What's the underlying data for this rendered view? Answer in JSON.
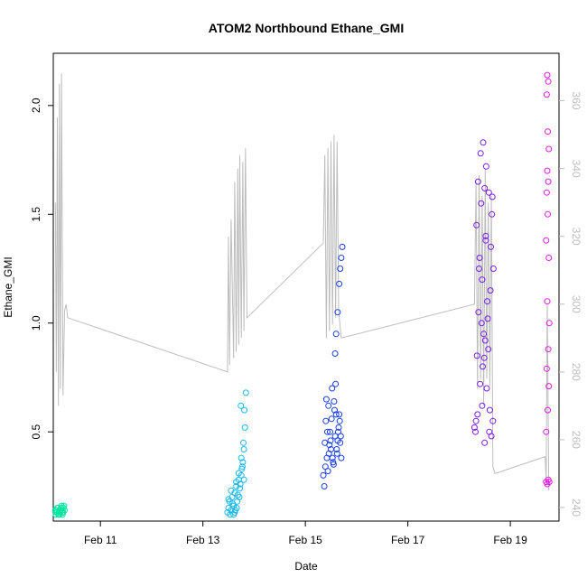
{
  "chart_data": {
    "type": "scatter",
    "title": "ATOM2 Northbound Ethane_GMI",
    "xlabel": "Date",
    "ylabel": "Ethane_GMI",
    "xlim": [
      10.08,
      19.95
    ],
    "ylim": [
      0.09,
      2.24
    ],
    "y_ticks": [
      0.5,
      1.0,
      1.5,
      2.0
    ],
    "y_tick_labels": [
      "0.5",
      "1.0",
      "1.5",
      "2.0"
    ],
    "x_ticks": [
      11,
      13,
      15,
      17,
      19
    ],
    "x_tick_labels": [
      "Feb 11",
      "Feb 13",
      "Feb 15",
      "Feb 17",
      "Feb 19"
    ],
    "right_axis": {
      "ylim": [
        236,
        374
      ],
      "ticks": [
        240,
        260,
        280,
        300,
        320,
        340,
        360
      ],
      "tick_labels": [
        "240",
        "260",
        "280",
        "300",
        "320",
        "340",
        "360"
      ],
      "color": "#bdbdbd"
    },
    "grid": false,
    "series": [
      {
        "color": "#00e5a0",
        "x": [
          10.12,
          10.14,
          10.16,
          10.18,
          10.2,
          10.22,
          10.24,
          10.26,
          10.28,
          10.3,
          10.13,
          10.17,
          10.21,
          10.25,
          10.29,
          10.15,
          10.19,
          10.23,
          10.27,
          10.14,
          10.2,
          10.26
        ],
        "y": [
          0.14,
          0.13,
          0.15,
          0.12,
          0.14,
          0.13,
          0.16,
          0.12,
          0.15,
          0.14,
          0.12,
          0.15,
          0.13,
          0.14,
          0.16,
          0.13,
          0.12,
          0.15,
          0.13,
          0.14,
          0.12,
          0.13
        ]
      },
      {
        "color": "#18b8f0",
        "x": [
          13.48,
          13.5,
          13.52,
          13.55,
          13.57,
          13.6,
          13.62,
          13.65,
          13.67,
          13.7,
          13.72,
          13.75,
          13.77,
          13.8,
          13.53,
          13.58,
          13.63,
          13.68,
          13.73,
          13.78,
          13.5,
          13.55,
          13.6,
          13.65,
          13.7,
          13.75,
          13.8,
          13.62,
          13.66,
          13.71,
          13.76,
          13.79,
          13.82,
          13.81,
          13.84,
          13.74
        ],
        "y": [
          0.13,
          0.15,
          0.18,
          0.14,
          0.2,
          0.16,
          0.22,
          0.25,
          0.18,
          0.28,
          0.24,
          0.3,
          0.34,
          0.28,
          0.12,
          0.17,
          0.14,
          0.21,
          0.26,
          0.36,
          0.19,
          0.23,
          0.12,
          0.27,
          0.31,
          0.38,
          0.42,
          0.13,
          0.15,
          0.2,
          0.33,
          0.45,
          0.52,
          0.6,
          0.68,
          0.62
        ]
      },
      {
        "color": "#1a3fe6",
        "x": [
          15.35,
          15.38,
          15.4,
          15.42,
          15.45,
          15.48,
          15.5,
          15.52,
          15.55,
          15.58,
          15.6,
          15.62,
          15.65,
          15.68,
          15.7,
          15.37,
          15.41,
          15.44,
          15.47,
          15.51,
          15.54,
          15.57,
          15.61,
          15.64,
          15.67,
          15.69,
          15.39,
          15.43,
          15.46,
          15.49,
          15.53,
          15.56,
          15.59,
          15.63,
          15.66,
          15.58,
          15.6,
          15.63,
          15.66,
          15.68,
          15.7,
          15.72
        ],
        "y": [
          0.3,
          0.45,
          0.55,
          0.38,
          0.62,
          0.5,
          0.42,
          0.7,
          0.35,
          0.48,
          0.58,
          0.4,
          0.52,
          0.45,
          0.38,
          0.25,
          0.65,
          0.32,
          0.44,
          0.56,
          0.36,
          0.6,
          0.42,
          0.5,
          0.55,
          0.48,
          0.34,
          0.5,
          0.4,
          0.46,
          0.38,
          0.64,
          0.72,
          0.46,
          0.58,
          0.86,
          0.95,
          1.05,
          1.18,
          1.25,
          1.3,
          1.35
        ]
      },
      {
        "color": "#7a1bf0",
        "x": [
          18.3,
          18.33,
          18.35,
          18.38,
          18.4,
          18.43,
          18.45,
          18.48,
          18.5,
          18.52,
          18.55,
          18.57,
          18.6,
          18.62,
          18.65,
          18.67,
          18.32,
          18.36,
          18.41,
          18.46,
          18.51,
          18.56,
          18.61,
          18.66,
          18.34,
          18.39,
          18.44,
          18.49,
          18.54,
          18.59,
          18.64,
          18.37,
          18.42,
          18.47,
          18.53,
          18.58,
          18.63,
          18.45,
          18.5,
          18.52
        ],
        "y": [
          0.52,
          0.55,
          0.85,
          1.05,
          1.3,
          1.55,
          1.2,
          0.95,
          1.62,
          1.4,
          1.1,
          0.88,
          0.6,
          1.35,
          1.58,
          1.25,
          0.5,
          0.58,
          0.72,
          0.8,
          0.92,
          1.02,
          1.15,
          0.55,
          1.45,
          1.25,
          1.0,
          0.84,
          0.7,
          0.5,
          1.5,
          1.65,
          1.78,
          1.83,
          1.72,
          1.6,
          0.48,
          0.62,
          0.45,
          1.38
        ]
      },
      {
        "color": "#e41be6",
        "x": [
          19.7,
          19.72,
          19.74,
          19.76,
          19.7,
          19.73,
          19.75,
          19.71,
          19.74,
          19.76,
          19.72,
          19.75,
          19.7,
          19.73,
          19.71,
          19.74,
          19.72,
          19.75,
          19.73,
          19.71,
          19.74,
          19.72
        ],
        "y": [
          0.27,
          0.26,
          0.28,
          0.27,
          0.5,
          0.6,
          0.71,
          0.79,
          0.88,
          1.0,
          1.1,
          1.3,
          1.38,
          1.5,
          1.6,
          1.65,
          1.7,
          1.8,
          1.88,
          2.05,
          2.11,
          2.14
        ]
      }
    ],
    "altitude_series": {
      "axis": "right",
      "color": "#bdbdbd",
      "x": [
        10.12,
        10.14,
        10.16,
        10.18,
        10.2,
        10.22,
        10.24,
        10.27,
        10.3,
        10.33,
        10.36,
        13.48,
        13.5,
        13.52,
        13.55,
        13.6,
        13.62,
        13.65,
        13.68,
        13.7,
        13.72,
        13.75,
        13.78,
        13.8,
        13.83,
        13.86,
        15.35,
        15.38,
        15.41,
        15.44,
        15.47,
        15.5,
        15.53,
        15.56,
        15.59,
        15.62,
        15.65,
        15.7,
        18.3,
        18.33,
        18.36,
        18.39,
        18.42,
        18.45,
        18.48,
        18.51,
        18.54,
        18.57,
        18.6,
        18.63,
        18.66,
        18.7,
        19.68,
        19.7,
        19.72,
        19.75
      ],
      "y": [
        330,
        280,
        355,
        270,
        365,
        275,
        368,
        273,
        298,
        300,
        296,
        280,
        320,
        282,
        325,
        284,
        336,
        286,
        340,
        288,
        344,
        290,
        342,
        292,
        346,
        296,
        318,
        344,
        290,
        346,
        292,
        348,
        294,
        350,
        296,
        348,
        298,
        290,
        300,
        336,
        275,
        338,
        278,
        332,
        270,
        340,
        278,
        330,
        276,
        332,
        252,
        250,
        255,
        248,
        300,
        245
      ]
    }
  }
}
